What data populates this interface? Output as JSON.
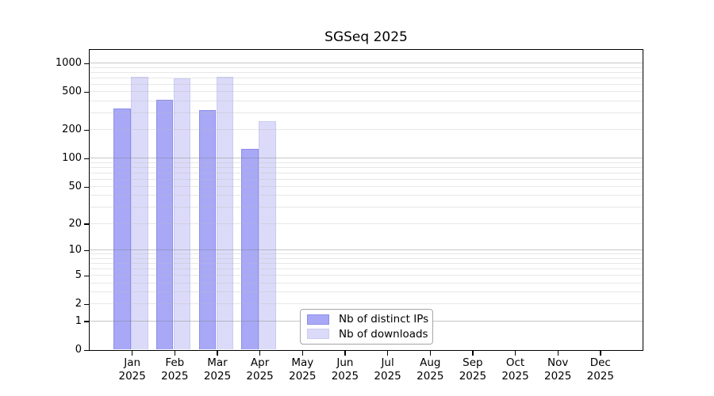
{
  "chart_data": {
    "type": "bar",
    "title": "SGSeq 2025",
    "year_label": "2025",
    "categories": [
      "Jan",
      "Feb",
      "Mar",
      "Apr",
      "May",
      "Jun",
      "Jul",
      "Aug",
      "Sep",
      "Oct",
      "Nov",
      "Dec"
    ],
    "series": [
      {
        "name": "Nb of distinct IPs",
        "color": "#a8a8f7",
        "edge_color": "#8d8deb",
        "values": [
          330,
          405,
          315,
          123,
          null,
          null,
          null,
          null,
          null,
          null,
          null,
          null
        ]
      },
      {
        "name": "Nb of downloads",
        "color": "#dbdbf9",
        "edge_color": "#cbcbf3",
        "values": [
          705,
          685,
          710,
          245,
          null,
          null,
          null,
          null,
          null,
          null,
          null,
          null
        ]
      }
    ],
    "xlabel": "",
    "ylabel": "",
    "y_ticks": [
      0,
      1,
      2,
      5,
      10,
      20,
      50,
      100,
      200,
      500,
      1000
    ],
    "ylim": [
      0,
      1000
    ],
    "y_scale": "log1p",
    "grid": "horizontal-major-and-minor",
    "legend_position": "bottom-center-inside"
  },
  "colors": {
    "background": "#ffffff",
    "axis_frame": "#000000",
    "grid_major": "#c6c6c6",
    "grid_minor": "#e9e9e9",
    "text": "#000000",
    "legend_border": "#a6a6a6"
  }
}
